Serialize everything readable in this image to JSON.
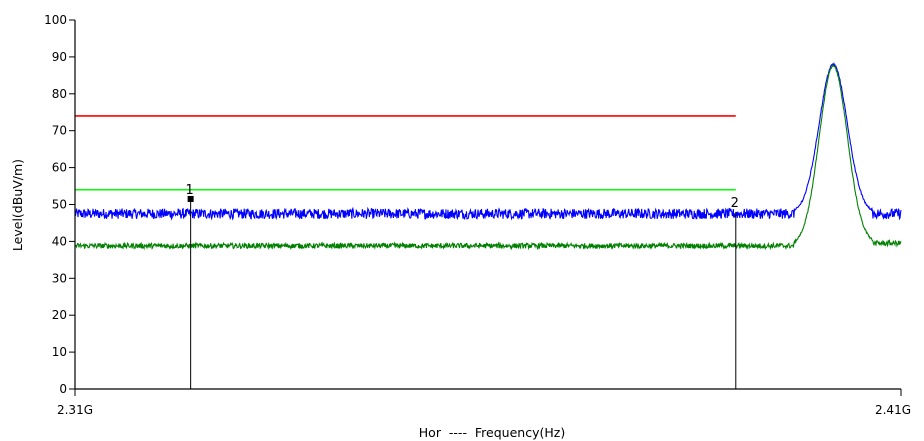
{
  "chart_data": {
    "type": "line",
    "xlabel": "Hor  ----  Frequency(Hz)",
    "ylabel": "Level(dBuV/m)",
    "x_start": 2.31,
    "x_end": 2.41,
    "x_tick_labels": [
      "2.31G",
      "2.41G"
    ],
    "ylim": [
      0,
      100
    ],
    "y_ticks": [
      0,
      10,
      20,
      30,
      40,
      50,
      60,
      70,
      80,
      90,
      100
    ],
    "grid": false,
    "colors": {
      "peak_trace": "#0000ff",
      "avg_trace": "#008000",
      "peak_limit": "#ff0000",
      "avg_limit": "#00ff00",
      "marker_line": "#000000"
    },
    "limit_lines": [
      {
        "value": 74,
        "x_end": 2.39,
        "color": "#ff0000"
      },
      {
        "value": 54,
        "x_end": 2.39,
        "color": "#00ff00"
      }
    ],
    "series": [
      {
        "color": "#0000ff",
        "baseline": 47.5,
        "noise": 1.4,
        "peak": {
          "center": 2.4018,
          "height": 88,
          "width": 0.0017
        },
        "tail": 47.5
      },
      {
        "color": "#008000",
        "baseline": 38.8,
        "noise": 0.7,
        "peak": {
          "center": 2.4018,
          "height": 87.5,
          "width": 0.0017
        },
        "tail": 39.5
      }
    ],
    "markers": [
      {
        "label": "1",
        "x": 2.324,
        "y": 51.5
      },
      {
        "label": "2",
        "x": 2.39,
        "y": 48
      }
    ]
  }
}
